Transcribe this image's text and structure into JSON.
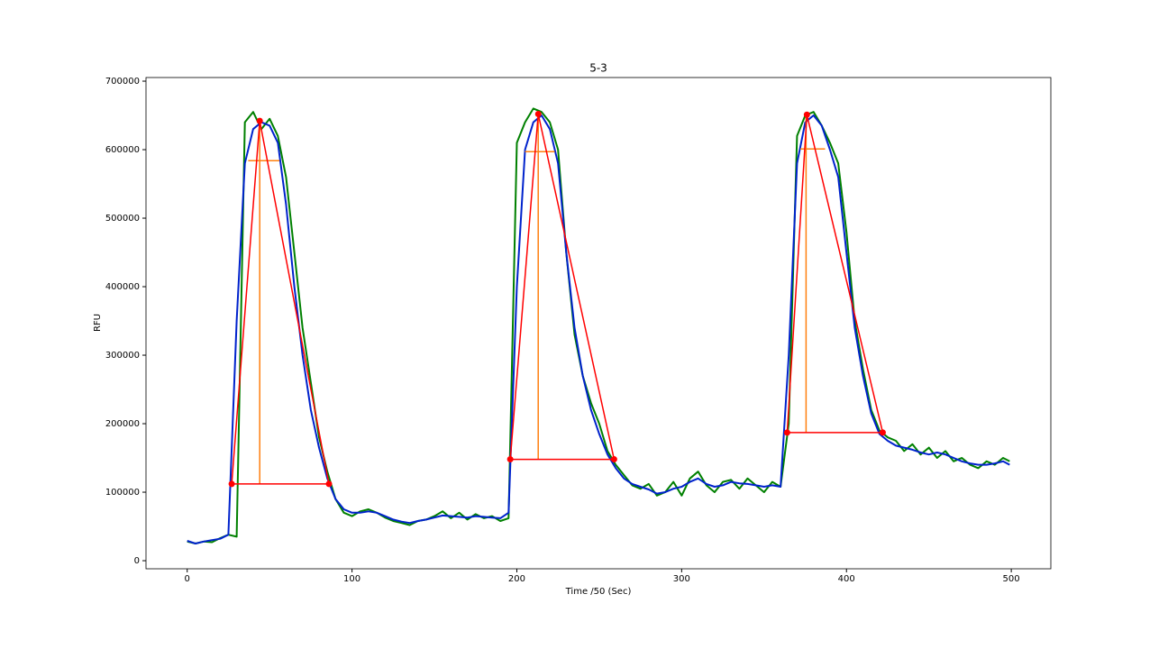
{
  "chart_data": {
    "type": "line",
    "title": "5-3",
    "x_label": "Time /50 (Sec)",
    "y_label": "RFU",
    "xlim": [
      -25,
      524
    ],
    "ylim": [
      -11800,
      705300
    ],
    "xticks": [
      0,
      100,
      200,
      300,
      400,
      500
    ],
    "yticks": [
      0,
      100000,
      200000,
      300000,
      400000,
      500000,
      600000,
      700000
    ],
    "grid": false,
    "x": [
      0,
      5,
      10,
      15,
      20,
      25,
      30,
      35,
      40,
      45,
      50,
      55,
      60,
      65,
      70,
      75,
      80,
      85,
      90,
      95,
      100,
      105,
      110,
      115,
      120,
      125,
      130,
      135,
      140,
      145,
      150,
      155,
      160,
      165,
      170,
      175,
      180,
      185,
      190,
      195,
      200,
      205,
      210,
      215,
      220,
      225,
      230,
      235,
      240,
      245,
      250,
      255,
      260,
      265,
      270,
      275,
      280,
      285,
      290,
      295,
      300,
      305,
      310,
      315,
      320,
      325,
      330,
      335,
      340,
      345,
      350,
      355,
      360,
      365,
      370,
      375,
      380,
      385,
      390,
      395,
      400,
      405,
      410,
      415,
      420,
      425,
      430,
      435,
      440,
      445,
      450,
      455,
      460,
      465,
      470,
      475,
      480,
      485,
      490,
      495,
      499
    ],
    "series": [
      {
        "color": "#008000",
        "width": 2,
        "values": [
          28000,
          25000,
          28000,
          27000,
          33000,
          38000,
          35000,
          640000,
          655000,
          630000,
          645000,
          620000,
          560000,
          450000,
          340000,
          260000,
          180000,
          130000,
          90000,
          70000,
          65000,
          72000,
          75000,
          70000,
          63000,
          58000,
          55000,
          52000,
          58000,
          60000,
          65000,
          72000,
          62000,
          70000,
          60000,
          68000,
          62000,
          65000,
          58000,
          62000,
          610000,
          640000,
          660000,
          655000,
          640000,
          600000,
          450000,
          330000,
          270000,
          230000,
          200000,
          160000,
          140000,
          125000,
          110000,
          105000,
          112000,
          95000,
          100000,
          115000,
          95000,
          120000,
          130000,
          110000,
          100000,
          115000,
          118000,
          105000,
          120000,
          110000,
          100000,
          115000,
          108000,
          200000,
          620000,
          650000,
          655000,
          635000,
          610000,
          580000,
          480000,
          350000,
          280000,
          220000,
          190000,
          180000,
          175000,
          160000,
          170000,
          155000,
          165000,
          150000,
          160000,
          145000,
          150000,
          140000,
          135000,
          145000,
          140000,
          150000,
          145000
        ]
      },
      {
        "color": "#0022cc",
        "width": 2,
        "values": [
          29000,
          25000,
          28000,
          30000,
          32000,
          38000,
          350000,
          580000,
          630000,
          640000,
          635000,
          610000,
          520000,
          400000,
          300000,
          220000,
          165000,
          120000,
          90000,
          75000,
          70000,
          70000,
          72000,
          70000,
          65000,
          60000,
          57000,
          55000,
          58000,
          60000,
          63000,
          66000,
          65000,
          64000,
          63000,
          65000,
          64000,
          63000,
          62000,
          70000,
          400000,
          600000,
          640000,
          650000,
          630000,
          580000,
          450000,
          340000,
          270000,
          220000,
          185000,
          155000,
          135000,
          120000,
          112000,
          108000,
          104000,
          98000,
          100000,
          105000,
          108000,
          115000,
          120000,
          112000,
          108000,
          110000,
          115000,
          113000,
          112000,
          110000,
          108000,
          110000,
          108000,
          300000,
          580000,
          640000,
          650000,
          635000,
          600000,
          560000,
          450000,
          340000,
          270000,
          215000,
          185000,
          175000,
          168000,
          165000,
          162000,
          158000,
          155000,
          158000,
          155000,
          150000,
          145000,
          142000,
          140000,
          140000,
          142000,
          145000,
          140000
        ]
      },
      {
        "color": "#ff7f0e",
        "width": 1.5,
        "x": [
          44,
          44,
          null,
          37,
          56,
          null,
          213,
          213,
          null,
          205,
          223,
          null,
          375.5,
          375.5,
          null,
          372,
          387
        ],
        "values": [
          112000,
          642000,
          null,
          584000,
          584000,
          null,
          148000,
          652000,
          null,
          597000,
          597000,
          null,
          187000,
          651000,
          null,
          601000,
          601000
        ]
      },
      {
        "color": "#ff0000",
        "width": 1.5,
        "x": [
          27,
          44,
          86,
          27,
          null,
          196,
          213,
          259,
          196,
          null,
          364,
          376,
          422,
          364
        ],
        "values": [
          112000,
          642000,
          112000,
          112000,
          null,
          148000,
          652000,
          148000,
          148000,
          null,
          187000,
          651000,
          187000,
          187000
        ]
      },
      {
        "color": "#ff0000",
        "marker": true,
        "line": false,
        "x": [
          27,
          44,
          86,
          196,
          213,
          259,
          364,
          376,
          422
        ],
        "values": [
          112000,
          642000,
          112000,
          148000,
          652000,
          148000,
          187000,
          651000,
          187000
        ]
      }
    ]
  }
}
